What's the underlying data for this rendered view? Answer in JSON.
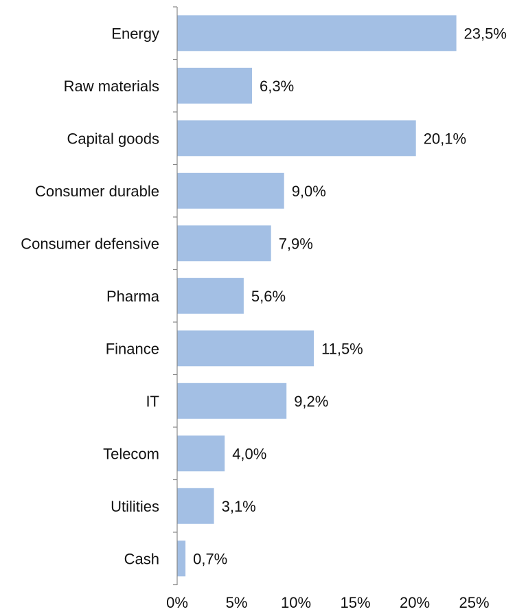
{
  "chart_data": {
    "type": "bar",
    "orientation": "horizontal",
    "categories": [
      "Energy",
      "Raw materials",
      "Capital goods",
      "Consumer durable",
      "Consumer defensive",
      "Pharma",
      "Finance",
      "IT",
      "Telecom",
      "Utilities",
      "Cash"
    ],
    "values": [
      23.5,
      6.3,
      20.1,
      9.0,
      7.9,
      5.6,
      11.5,
      9.2,
      4.0,
      3.1,
      0.7
    ],
    "value_labels": [
      "23,5%",
      "6,3%",
      "20,1%",
      "9,0%",
      "7,9%",
      "5,6%",
      "11,5%",
      "9,2%",
      "4,0%",
      "3,1%",
      "0,7%"
    ],
    "x_ticks": [
      0,
      5,
      10,
      15,
      20,
      25
    ],
    "x_tick_labels": [
      "0%",
      "5%",
      "10%",
      "15%",
      "20%",
      "25%"
    ],
    "xlim": [
      0,
      25
    ],
    "bar_color": "#a3bfe4",
    "grid": false,
    "legend": "none"
  }
}
